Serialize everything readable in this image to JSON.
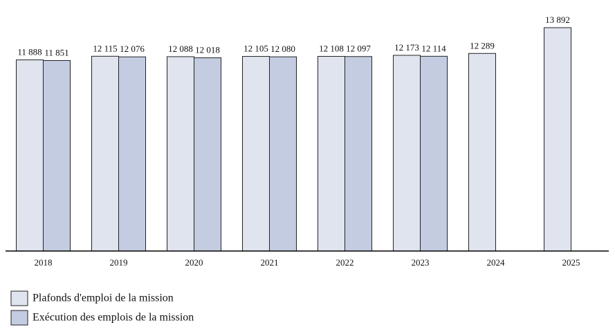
{
  "chart_data": {
    "type": "bar",
    "categories": [
      "2018",
      "2019",
      "2020",
      "2021",
      "2022",
      "2023",
      "2024",
      "2025"
    ],
    "series": [
      {
        "name": "Plafonds d'emploi de la mission",
        "color": "#dfe4ee",
        "values": [
          11888,
          12115,
          12088,
          12105,
          12108,
          12173,
          12289,
          13892
        ],
        "value_labels": [
          "11 888",
          "12 115",
          "12 088",
          "12 105",
          "12 108",
          "12 173",
          "12 289",
          "13 892"
        ]
      },
      {
        "name": "Exécution des emplois de la mission",
        "color": "#c3cce0",
        "values": [
          11851,
          12076,
          12018,
          12080,
          12097,
          12114,
          null,
          null
        ],
        "value_labels": [
          "11 851",
          "12 076",
          "12 018",
          "12 080",
          "12 097",
          "12 114",
          null,
          null
        ]
      }
    ],
    "ylim": [
      0,
      15000
    ],
    "grid": false
  }
}
